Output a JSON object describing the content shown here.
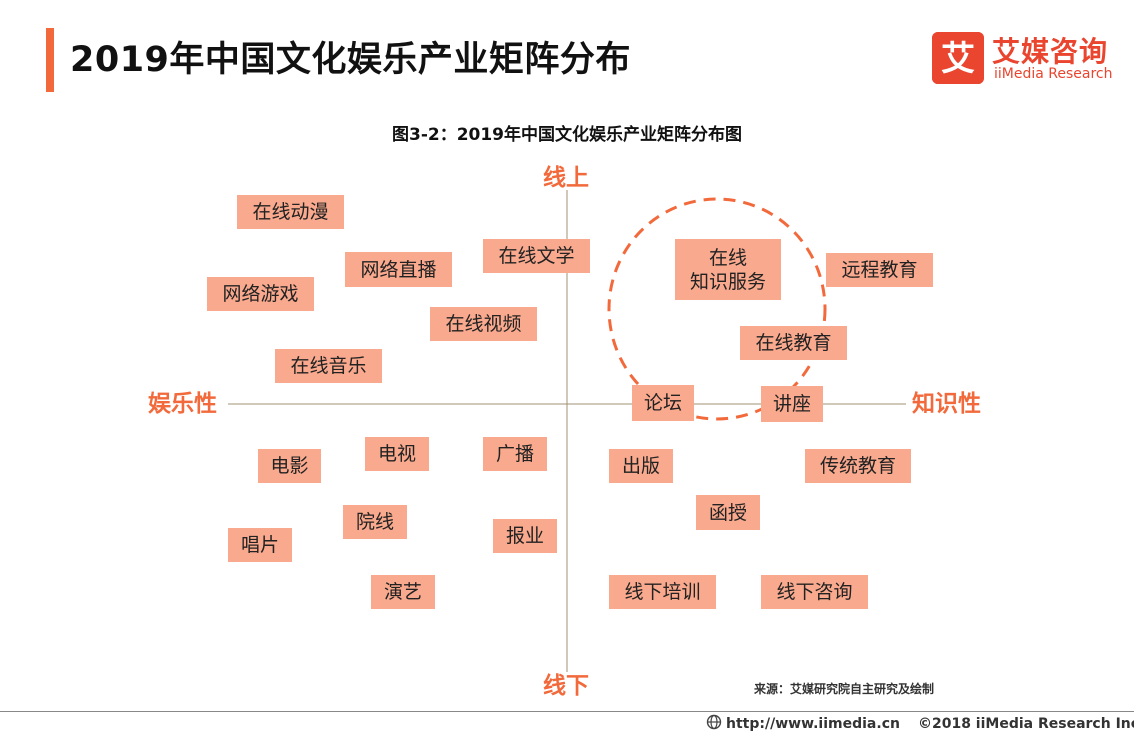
{
  "header": {
    "title": "2019年中国文化娱乐产业矩阵分布",
    "logo_cn": "艾媒咨询",
    "logo_en": "iiMedia Research",
    "logo_glyph": "艾"
  },
  "figure": {
    "title": "图3-2：2019年中国文化娱乐产业矩阵分布图",
    "axes": {
      "top": "线上",
      "bottom": "线下",
      "left": "娱乐性",
      "right": "知识性"
    },
    "items": [
      "在线动漫",
      "网络直播",
      "在线文学",
      "在线\n知识服务",
      "远程教育",
      "网络游戏",
      "在线视频",
      "在线教育",
      "在线音乐",
      "论坛",
      "讲座",
      "电影",
      "电视",
      "广播",
      "出版",
      "传统教育",
      "函授",
      "院线",
      "报业",
      "唱片",
      "演艺",
      "线下培训",
      "线下咨询"
    ],
    "source": "来源：艾媒研究院自主研究及绘制"
  },
  "footer": {
    "url": "http://www.iimedia.cn",
    "copyright": "©2018  iiMedia Research Inc"
  },
  "colors": {
    "accent": "#f26a3c",
    "box_fill": "#f9a98d",
    "logo_red": "#e9452f"
  }
}
